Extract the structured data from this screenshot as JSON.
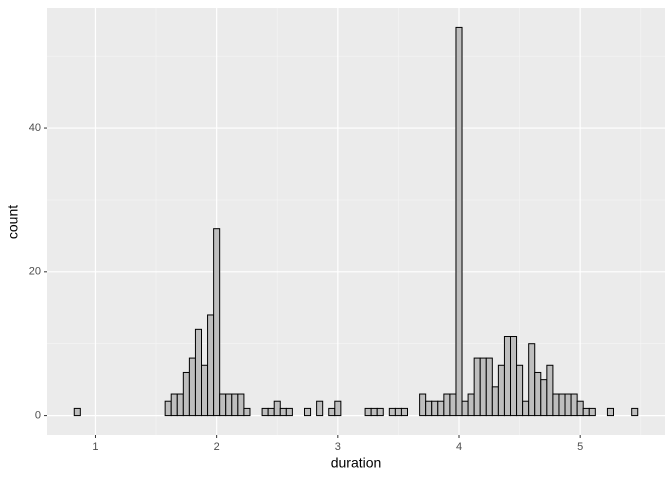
{
  "chart_data": {
    "type": "histogram",
    "x_label": "duration",
    "y_label": "count",
    "bins": [
      0.825,
      0.875,
      0.925,
      0.975,
      1.025,
      1.075,
      1.125,
      1.175,
      1.225,
      1.275,
      1.325,
      1.375,
      1.425,
      1.475,
      1.525,
      1.575,
      1.625,
      1.675,
      1.725,
      1.775,
      1.825,
      1.875,
      1.925,
      1.975,
      2.025,
      2.075,
      2.125,
      2.175,
      2.225,
      2.275,
      2.325,
      2.375,
      2.425,
      2.475,
      2.525,
      2.575,
      2.625,
      2.675,
      2.725,
      2.775,
      2.825,
      2.875,
      2.925,
      2.975,
      3.025,
      3.075,
      3.125,
      3.175,
      3.225,
      3.275,
      3.325,
      3.375,
      3.425,
      3.475,
      3.525,
      3.575,
      3.625,
      3.675,
      3.725,
      3.775,
      3.825,
      3.875,
      3.925,
      3.975,
      4.025,
      4.075,
      4.125,
      4.175,
      4.225,
      4.275,
      4.325,
      4.375,
      4.425,
      4.475,
      4.525,
      4.575,
      4.625,
      4.675,
      4.725,
      4.775,
      4.825,
      4.875,
      4.925,
      4.975,
      5.025,
      5.075,
      5.125,
      5.175,
      5.225,
      5.275,
      5.325,
      5.375,
      5.425,
      5.475
    ],
    "values": [
      1,
      0,
      0,
      0,
      0,
      0,
      0,
      0,
      0,
      0,
      0,
      0,
      0,
      0,
      0,
      2,
      3,
      3,
      6,
      8,
      12,
      7,
      14,
      26,
      3,
      3,
      3,
      3,
      1,
      0,
      0,
      1,
      1,
      2,
      1,
      1,
      0,
      0,
      1,
      0,
      2,
      0,
      1,
      2,
      0,
      0,
      0,
      0,
      1,
      1,
      1,
      0,
      1,
      1,
      1,
      0,
      0,
      3,
      2,
      2,
      2,
      3,
      3,
      54,
      2,
      3,
      8,
      8,
      8,
      4,
      7,
      11,
      11,
      7,
      2,
      10,
      6,
      5,
      7,
      3,
      3,
      3,
      3,
      2,
      1,
      1,
      0,
      0,
      1,
      0,
      0,
      0,
      1
    ],
    "color": "#bebebe",
    "edgecolor": "#000000",
    "xlim": [
      0.6,
      5.7
    ],
    "xticks": [
      1,
      2,
      3,
      4,
      5
    ],
    "ylim": [
      -2.7,
      56.7
    ],
    "yticks": [
      0,
      20,
      40
    ],
    "grid": true
  }
}
